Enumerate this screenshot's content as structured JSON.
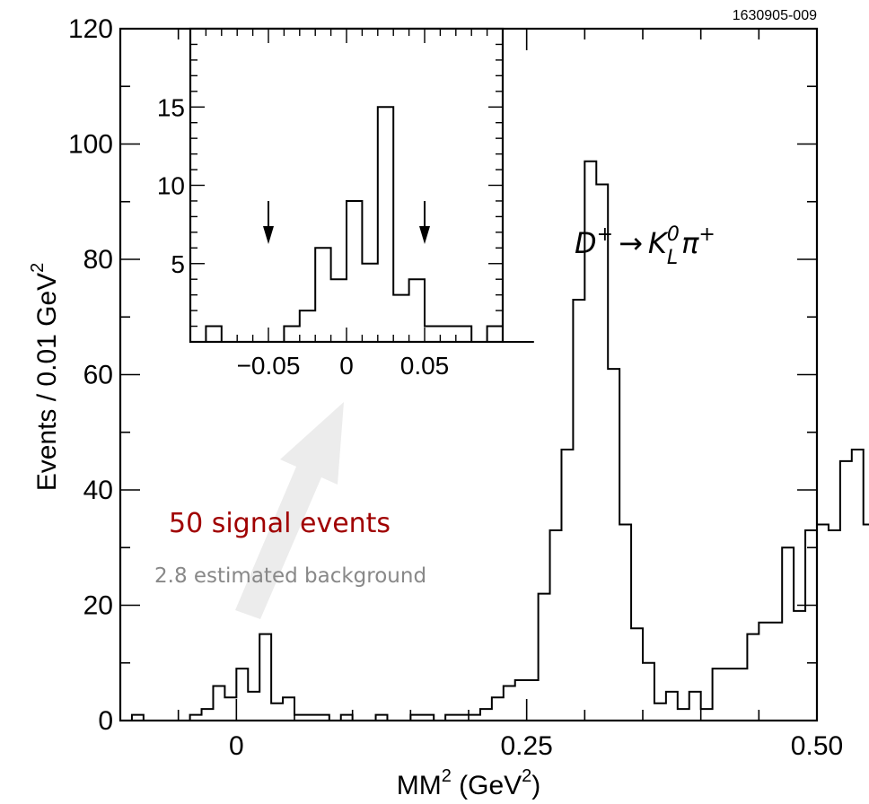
{
  "figure_id": "1630905-009",
  "chart_data": [
    {
      "type": "histogram",
      "xlabel": {
        "base": "MM",
        "sup": "2",
        "unit_open": " (GeV",
        "unit_sup": "2",
        "unit_close": ")"
      },
      "ylabel": {
        "text": "Events / 0.01 GeV",
        "sup": "2"
      },
      "xlim": [
        -0.1,
        0.5
      ],
      "ylim": [
        0,
        120
      ],
      "x_ticks": [
        {
          "value": 0,
          "label": "0"
        },
        {
          "value": 0.25,
          "label": "0.25"
        },
        {
          "value": 0.5,
          "label": "0.50"
        }
      ],
      "y_ticks": [
        {
          "value": 0,
          "label": "0"
        },
        {
          "value": 20,
          "label": "20"
        },
        {
          "value": 40,
          "label": "40"
        },
        {
          "value": 60,
          "label": "60"
        },
        {
          "value": 80,
          "label": "80"
        },
        {
          "value": 100,
          "label": "100"
        },
        {
          "value": 120,
          "label": "120"
        }
      ],
      "bin_width": 0.01,
      "bin_start": -0.1,
      "counts": [
        0,
        1,
        0,
        0,
        0,
        0,
        1,
        2,
        6,
        4,
        9,
        5,
        15,
        3,
        4,
        1,
        1,
        1,
        0,
        1,
        0,
        0,
        1,
        0,
        0,
        1,
        1,
        0,
        1,
        1,
        1,
        2,
        4,
        6,
        7,
        7,
        22,
        33,
        47,
        73,
        97,
        93,
        61,
        34,
        16,
        10,
        3,
        5,
        2,
        5,
        2,
        9,
        9,
        9,
        15,
        17,
        17,
        30,
        19,
        33,
        34,
        33,
        45,
        47,
        34
      ],
      "annotations": {
        "decay": {
          "particle": "D",
          "particle_sup": "+",
          "arrow": "→",
          "kaon": "K",
          "kaon_sub": "L",
          "kaon_sup": "0",
          "pion": "π",
          "pion_sup": "+"
        },
        "signal": {
          "text": "50 signal events",
          "color": "#a00000"
        },
        "background": {
          "text": "2.8 estimated background",
          "color": "#888888"
        }
      }
    },
    {
      "type": "histogram",
      "name": "inset",
      "xlim": [
        -0.1,
        0.1
      ],
      "ylim": [
        0,
        20
      ],
      "x_ticks": [
        {
          "value": -0.05,
          "label": "−0.05"
        },
        {
          "value": 0,
          "label": "0"
        },
        {
          "value": 0.05,
          "label": "0.05"
        }
      ],
      "y_ticks": [
        {
          "value": 5,
          "label": "5"
        },
        {
          "value": 10,
          "label": "10"
        },
        {
          "value": 15,
          "label": "15"
        }
      ],
      "bin_width": 0.01,
      "bin_start": -0.1,
      "counts": [
        0,
        1,
        0,
        0,
        0,
        0,
        1,
        2,
        6,
        4,
        9,
        5,
        15,
        3,
        4,
        1,
        1,
        1,
        0,
        1,
        0,
        0
      ],
      "cut_markers": [
        -0.05,
        0.05
      ]
    }
  ],
  "colors": {
    "axis": "#000000",
    "arrow_fill": "#ececec"
  }
}
